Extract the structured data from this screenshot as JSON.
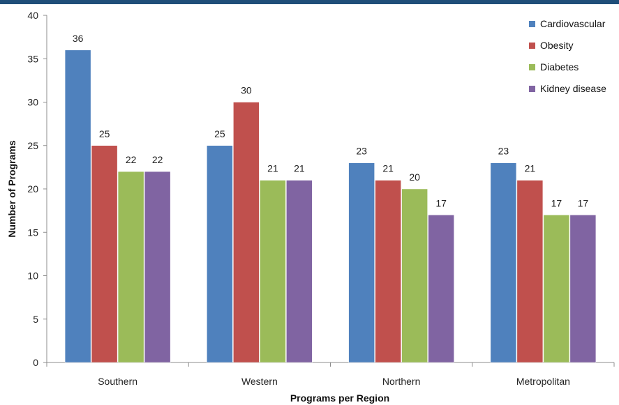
{
  "chart_data": {
    "type": "bar",
    "title": "",
    "xlabel": "Programs per Region",
    "ylabel": "Number of Programs",
    "ylim": [
      0,
      40
    ],
    "yticks": [
      0,
      5,
      10,
      15,
      20,
      25,
      30,
      35,
      40
    ],
    "categories": [
      "Southern",
      "Western",
      "Northern",
      "Metropolitan"
    ],
    "series": [
      {
        "name": "Cardiovascular",
        "color": "#4f81bd",
        "values": [
          36,
          25,
          23,
          23
        ]
      },
      {
        "name": "Obesity",
        "color": "#c0504d",
        "values": [
          25,
          30,
          21,
          21
        ]
      },
      {
        "name": "Diabetes",
        "color": "#9bbb59",
        "values": [
          22,
          21,
          20,
          17
        ]
      },
      {
        "name": "Kidney disease",
        "color": "#8064a2",
        "values": [
          22,
          21,
          17,
          17
        ]
      }
    ],
    "data_labels": true,
    "grid": false,
    "legend_position": "top-right"
  },
  "colors": {
    "header_bar": "#1f4e79"
  }
}
